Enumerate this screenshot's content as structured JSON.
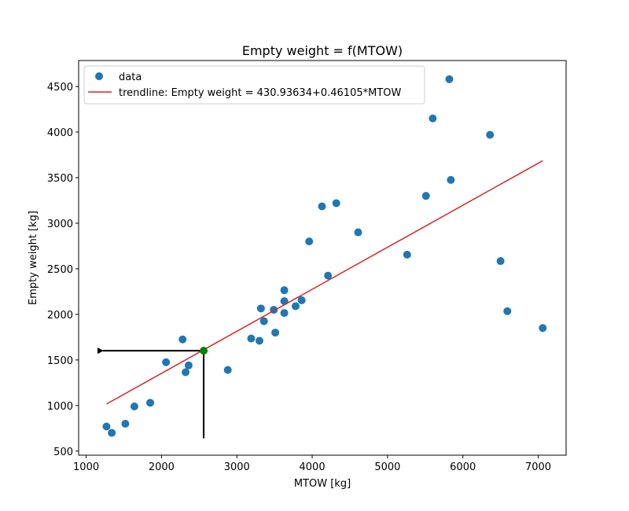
{
  "chart_data": {
    "type": "scatter",
    "title": "Empty weight = f(MTOW)",
    "xlabel": "MTOW [kg]",
    "ylabel": "Empty weight [kg]",
    "xlim": [
      900,
      7370
    ],
    "ylim": [
      455,
      4785
    ],
    "xticks": [
      1000,
      2000,
      3000,
      4000,
      5000,
      6000,
      7000
    ],
    "yticks": [
      500,
      1000,
      1500,
      2000,
      2500,
      3000,
      3500,
      4000,
      4500
    ],
    "grid": false,
    "legend": {
      "placement": "top-left",
      "entries": [
        {
          "label": "data",
          "marker": "circle",
          "color": "#1f77b4"
        },
        {
          "label": "trendline: Empty weight = 430.93634+0.46105*MTOW",
          "marker": "line",
          "color": "#d62728"
        }
      ]
    },
    "series": [
      {
        "name": "data",
        "kind": "scatter",
        "color": "#1f77b4",
        "points": [
          [
            1270,
            770
          ],
          [
            1340,
            700
          ],
          [
            1520,
            800
          ],
          [
            1640,
            990
          ],
          [
            1850,
            1030
          ],
          [
            2060,
            1475
          ],
          [
            2280,
            1725
          ],
          [
            2320,
            1365
          ],
          [
            2360,
            1440
          ],
          [
            2880,
            1390
          ],
          [
            3190,
            1735
          ],
          [
            3300,
            1710
          ],
          [
            3320,
            2065
          ],
          [
            3360,
            1925
          ],
          [
            3490,
            2050
          ],
          [
            3510,
            1800
          ],
          [
            3630,
            2265
          ],
          [
            3630,
            2145
          ],
          [
            3630,
            2015
          ],
          [
            3780,
            2090
          ],
          [
            3860,
            2155
          ],
          [
            3960,
            2800
          ],
          [
            4130,
            3185
          ],
          [
            4210,
            2425
          ],
          [
            4320,
            3220
          ],
          [
            4610,
            2900
          ],
          [
            5260,
            2655
          ],
          [
            5510,
            3300
          ],
          [
            5600,
            4150
          ],
          [
            5820,
            4580
          ],
          [
            5840,
            3475
          ],
          [
            6360,
            3970
          ],
          [
            6500,
            2585
          ],
          [
            6590,
            2035
          ],
          [
            7060,
            1850
          ]
        ]
      },
      {
        "name": "trendline: Empty weight = 430.93634+0.46105*MTOW",
        "kind": "line",
        "color": "#d62728",
        "intercept": 430.93634,
        "slope": 0.46105,
        "x_range": [
          1270,
          7060
        ]
      }
    ],
    "annotations": {
      "highlight_point": {
        "x": 2560,
        "y": 1601,
        "color": "#008000"
      },
      "arrow": {
        "from": [
          2560,
          1601
        ],
        "to": [
          1140,
          1601
        ],
        "color": "#000000"
      },
      "vertical_line": {
        "x": 2560,
        "y_from": 1601,
        "y_to": 640,
        "color": "#000000"
      }
    }
  }
}
